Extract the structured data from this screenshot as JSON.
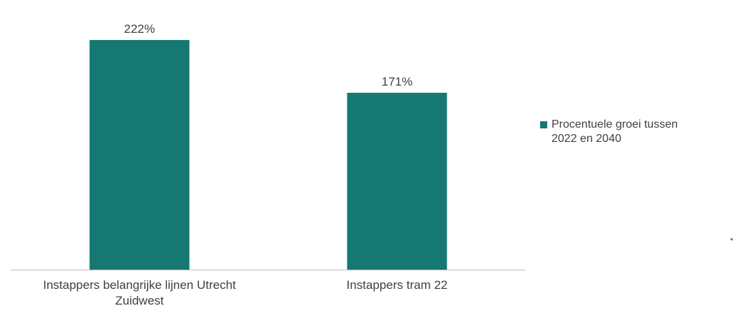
{
  "chart_data": {
    "type": "bar",
    "categories": [
      "Instappers belangrijke lijnen Utrecht\nZuidwest",
      "Instappers tram 22"
    ],
    "series": [
      {
        "name": "Procentuele groei tussen\n2022 en 2040",
        "values": [
          222,
          171
        ],
        "data_labels": [
          "222%",
          "171%"
        ],
        "color": "#167873"
      }
    ],
    "ylim": [
      0,
      240
    ],
    "grid": false,
    "legend_position": "right"
  }
}
